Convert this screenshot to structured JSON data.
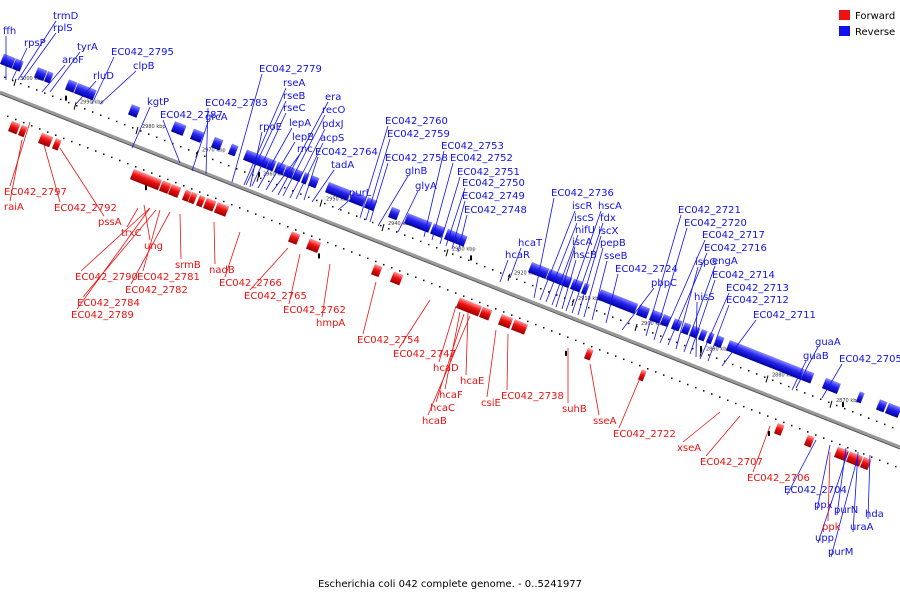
{
  "title": "Escherichia coli 042 complete genome. - 0..5241977",
  "colors": {
    "forward": "#ee1111",
    "reverse": "#1111ee",
    "backbone": "#777777"
  },
  "legend": [
    {
      "label": "Forward",
      "strand": "forward"
    },
    {
      "label": "Reverse",
      "strand": "reverse"
    }
  ],
  "ticks": [
    "3000 kbp",
    "2990 kbp",
    "2980 kbp",
    "2970 kbp",
    "2960 kbp",
    "2950 kbp",
    "2940 kbp",
    "2930 kbp",
    "2920 kbp",
    "2910 kbp",
    "2900 kbp",
    "2890 kbp",
    "2880 kbp",
    "2870 kbp"
  ],
  "reverse_labels": [
    "ffh",
    "rpsP",
    "trmD",
    "rplS",
    "tyrA",
    "aroF",
    "rluD",
    "EC042_2795",
    "clpB",
    "kgtP",
    "EC042_2787",
    "grcA",
    "EC042_2783",
    "EC042_2779",
    "rseA",
    "rseB",
    "rseC",
    "rpoE",
    "lepA",
    "lepB",
    "rnc",
    "era",
    "recO",
    "pdxJ",
    "acpS",
    "EC042_2764",
    "tadA",
    "purL",
    "EC042_2760",
    "EC042_2759",
    "EC042_2758",
    "glnB",
    "glyA",
    "EC042_2753",
    "EC042_2752",
    "EC042_2751",
    "EC042_2750",
    "EC042_2749",
    "EC042_2748",
    "hcaT",
    "hcaR",
    "EC042_2736",
    "iscR",
    "iscS",
    "nifU",
    "iscA",
    "hscB",
    "hscA",
    "fdx",
    "iscX",
    "pepB",
    "sseB",
    "EC042_2724",
    "pbpC",
    "EC042_2721",
    "EC042_2720",
    "EC042_2717",
    "EC042_2716",
    "ispG",
    "engA",
    "EC042_2714",
    "hisS",
    "EC042_2713",
    "EC042_2712",
    "EC042_2711",
    "guaA",
    "guaB",
    "EC042_2705",
    "EC042_2704",
    "ppx",
    "purN",
    "uraA",
    "hda",
    "upp",
    "purM"
  ],
  "forward_labels": [
    "EC042_2797",
    "raiA",
    "EC042_2792",
    "pssA",
    "ung",
    "trxC",
    "EC042_2790",
    "EC042_2781",
    "srmB",
    "EC042_2782",
    "EC042_2784",
    "EC042_2789",
    "nadB",
    "EC042_2766",
    "EC042_2765",
    "EC042_2762",
    "hmpA",
    "EC042_2754",
    "EC042_2747",
    "hcaD",
    "hcaE",
    "hcaF",
    "hcaC",
    "hcaB",
    "csiE",
    "EC042_2738",
    "suhB",
    "sseA",
    "EC042_2722",
    "xseA",
    "EC042_2707",
    "EC042_2706",
    "ppk"
  ]
}
